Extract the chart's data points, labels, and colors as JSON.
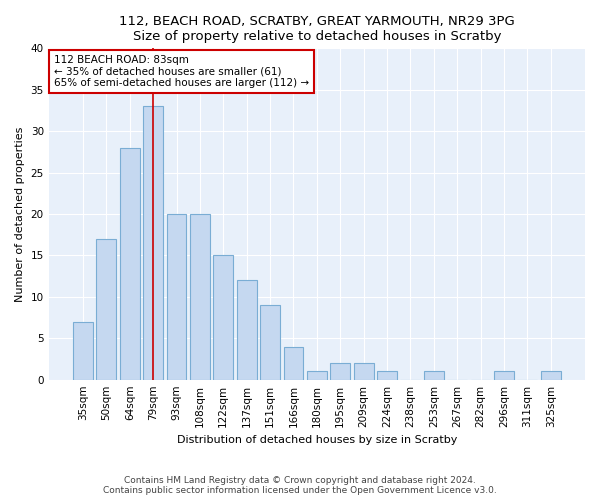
{
  "title1": "112, BEACH ROAD, SCRATBY, GREAT YARMOUTH, NR29 3PG",
  "title2": "Size of property relative to detached houses in Scratby",
  "xlabel": "Distribution of detached houses by size in Scratby",
  "ylabel": "Number of detached properties",
  "bar_labels": [
    "35sqm",
    "50sqm",
    "64sqm",
    "79sqm",
    "93sqm",
    "108sqm",
    "122sqm",
    "137sqm",
    "151sqm",
    "166sqm",
    "180sqm",
    "195sqm",
    "209sqm",
    "224sqm",
    "238sqm",
    "253sqm",
    "267sqm",
    "282sqm",
    "296sqm",
    "311sqm",
    "325sqm"
  ],
  "bar_values": [
    7,
    17,
    28,
    33,
    20,
    20,
    15,
    12,
    9,
    4,
    1,
    2,
    2,
    1,
    0,
    1,
    0,
    0,
    1,
    0,
    1
  ],
  "bar_color": "#c5d8f0",
  "bar_edge_color": "#7aadd4",
  "vline_x_index": 3,
  "vline_color": "#cc0000",
  "annotation_text": "112 BEACH ROAD: 83sqm\n← 35% of detached houses are smaller (61)\n65% of semi-detached houses are larger (112) →",
  "annotation_box_color": "#ffffff",
  "annotation_box_edge": "#cc0000",
  "ylim": [
    0,
    40
  ],
  "yticks": [
    0,
    5,
    10,
    15,
    20,
    25,
    30,
    35,
    40
  ],
  "footer1": "Contains HM Land Registry data © Crown copyright and database right 2024.",
  "footer2": "Contains public sector information licensed under the Open Government Licence v3.0.",
  "bg_color": "#ffffff",
  "plot_bg_color": "#e8f0fa",
  "grid_color": "#ffffff",
  "title_fontsize": 9.5,
  "axis_label_fontsize": 8,
  "tick_fontsize": 7.5,
  "annotation_fontsize": 7.5,
  "footer_fontsize": 6.5
}
